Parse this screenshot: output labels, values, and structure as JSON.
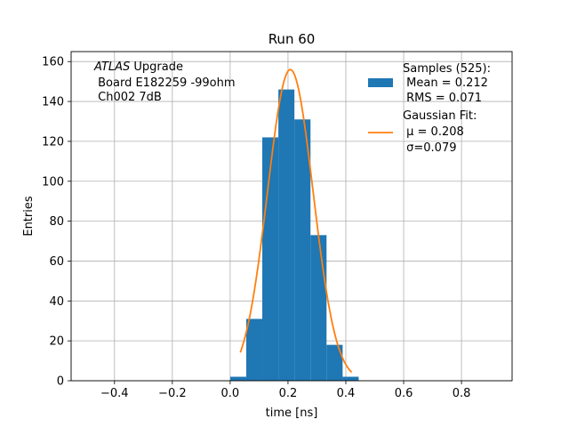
{
  "chart_data": {
    "type": "bar",
    "title": "Run 60",
    "xlabel": "time [ns]",
    "ylabel": "Entries",
    "xlim": [
      -0.55,
      0.975
    ],
    "ylim": [
      0,
      165
    ],
    "grid": true,
    "xticks": [
      -0.4,
      -0.2,
      0.0,
      0.2,
      0.4,
      0.6,
      0.8
    ],
    "xtick_labels": [
      "−0.4",
      "−0.2",
      "0.0",
      "0.2",
      "0.4",
      "0.6",
      "0.8"
    ],
    "yticks": [
      0,
      20,
      40,
      60,
      80,
      100,
      120,
      140,
      160
    ],
    "ytick_labels": [
      "0",
      "20",
      "40",
      "60",
      "80",
      "100",
      "120",
      "140",
      "160"
    ],
    "histogram": {
      "bin_edges": [
        0.0,
        0.0556,
        0.1111,
        0.1667,
        0.2222,
        0.2778,
        0.3333,
        0.3889,
        0.4444
      ],
      "counts": [
        2,
        31,
        122,
        146,
        131,
        73,
        18,
        2
      ],
      "color": "#1f77b4"
    },
    "fit": {
      "mu": 0.208,
      "sigma": 0.079,
      "amplitude": 156,
      "x_range": [
        0.035,
        0.42
      ],
      "color": "#ff7f0e"
    },
    "annotation": {
      "line1_italic": "ATLAS",
      "line1_rest": " Upgrade",
      "line2": " Board E182259 -99ohm",
      "line3": " Ch002 7dB"
    },
    "legend": {
      "position": "top-right",
      "samples": [
        "Samples (525):",
        " Mean = 0.212",
        " RMS = 0.071"
      ],
      "fit": [
        "Gaussian Fit:",
        " μ = 0.208",
        " σ=0.079"
      ]
    }
  }
}
